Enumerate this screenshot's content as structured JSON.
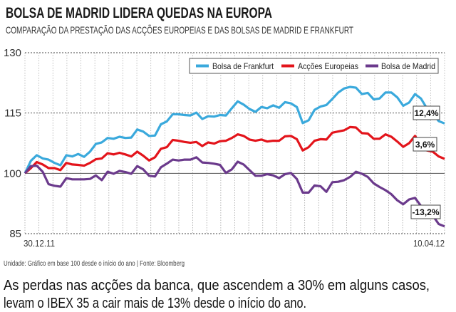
{
  "title": "BOLSA DE MADRID LIDERA QUEDAS NA EUROPA",
  "subtitle": "COMPARAÇÃO DA PRESTAÇÃO DAS ACÇÕES EUROPEIAS E DAS BOLSAS DE MADRID E FRANKFURT",
  "footnote": "Unidade: Gráfico em base 100 desde o início do ano | Fonte: Bloomberg",
  "caption_lines": [
    "As perdas nas acções da banca, que ascendem a 30% em alguns casos,",
    "levam o IBEX 35 a cair mais de 13% desde o início do ano."
  ],
  "chart_data": {
    "type": "line",
    "title": "BOLSA DE MADRID LIDERA QUEDAS NA EUROPA",
    "x_start_label": "30.12.11",
    "x_end_label": "10.04.12",
    "ylim": [
      85,
      130
    ],
    "yticks": [
      "130",
      "115",
      "100",
      "85"
    ],
    "ytick_values": [
      130,
      115,
      100,
      85
    ],
    "baseline": 100,
    "grid": true,
    "legend": "top-right",
    "series": [
      {
        "name": "Bolsa de Frankfurt",
        "color": "#3aa9dc",
        "end_label": "12,4%",
        "values": [
          100,
          103.1,
          104.5,
          103.7,
          103.4,
          102.6,
          102,
          104.5,
          104.2,
          104.8,
          104.1,
          105.4,
          107.3,
          107.7,
          108.8,
          108.6,
          109.1,
          108.8,
          108.9,
          110.9,
          110.4,
          109.3,
          109.4,
          112.2,
          112.9,
          114.7,
          114.7,
          114.5,
          114.4,
          115.1,
          113.5,
          114.2,
          114.1,
          114.5,
          114.4,
          116.2,
          117.9,
          117.1,
          116,
          115.3,
          116.5,
          116.2,
          116.9,
          116.3,
          117.7,
          117.4,
          116.5,
          112.5,
          113.2,
          115.8,
          116.6,
          117,
          118.5,
          120.1,
          121.1,
          121.5,
          121.3,
          119.7,
          120,
          118.4,
          118.6,
          120.1,
          120.1,
          118.9,
          116.8,
          117.6,
          119.7,
          118.6,
          116.2,
          114.9,
          113,
          112.4
        ]
      },
      {
        "name": "Acções Europeias",
        "color": "#e3141b",
        "end_label": "3,6%",
        "values": [
          100,
          101.3,
          102.8,
          102.2,
          101.3,
          101.3,
          100.8,
          102.6,
          102.2,
          102.1,
          101.9,
          102.6,
          103.5,
          103.7,
          105,
          104.7,
          105.1,
          104.7,
          104.2,
          105.4,
          104.4,
          103.2,
          104,
          106.1,
          106.5,
          108.3,
          108.1,
          107.8,
          107.6,
          107.8,
          106.8,
          107.7,
          107.4,
          108,
          108.1,
          108.8,
          109.7,
          109.3,
          108.4,
          108.1,
          108.4,
          107.9,
          108.1,
          108.1,
          109.2,
          109.3,
          108.5,
          105.7,
          106.5,
          108.1,
          108.5,
          108.4,
          110.1,
          110.4,
          110.7,
          111.5,
          111.4,
          110,
          109.9,
          108.6,
          108.6,
          109.7,
          109.1,
          107.9,
          106.6,
          107.5,
          109.3,
          107.2,
          105.7,
          105.4,
          104.2,
          103.6
        ]
      },
      {
        "name": "Bolsa de Madrid",
        "color": "#6b3a8c",
        "end_label": "-13,2%",
        "values": [
          100,
          101.8,
          101.9,
          100.4,
          97.3,
          96.9,
          96.7,
          98.8,
          98.5,
          98.5,
          98.5,
          98.6,
          99.5,
          98.3,
          100.4,
          99.9,
          100.6,
          100.3,
          99.9,
          101.8,
          101,
          99.4,
          99.2,
          101.5,
          102.4,
          103.4,
          103.2,
          103.4,
          103.4,
          104,
          102.7,
          102.6,
          102.4,
          102.1,
          100.1,
          101,
          102.9,
          102.2,
          100.8,
          99.4,
          99.4,
          99.8,
          99.5,
          98.8,
          99.8,
          100.1,
          98.6,
          95.2,
          95.2,
          97,
          96.8,
          95.4,
          97.8,
          97.9,
          98.3,
          99.1,
          100.4,
          99.9,
          99.1,
          97.5,
          96.6,
          95.8,
          94.8,
          93.3,
          92.3,
          93.5,
          93.9,
          91.9,
          90.7,
          89.5,
          87.4,
          86.8
        ]
      }
    ]
  }
}
